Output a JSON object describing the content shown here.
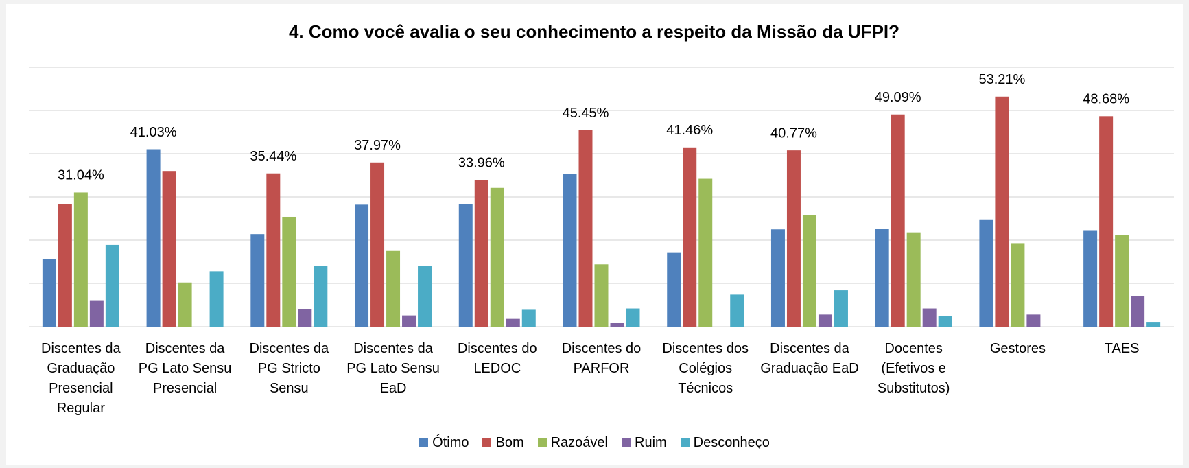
{
  "chart_data": {
    "type": "bar",
    "title": "4. Como você avalia o seu conhecimento a respeito da Missão da UFPI?",
    "categories": [
      "Discentes da Graduação Presencial Regular",
      "Discentes da PG Lato Sensu Presencial",
      "Discentes da PG Stricto Sensu",
      "Discentes da PG Lato Sensu EaD",
      "Discentes do LEDOC",
      "Discentes do PARFOR",
      "Discentes dos Colégios Técnicos",
      "Discentes da Graduação EaD",
      "Docentes (Efetivos e Substitutos)",
      "Gestores",
      "TAES"
    ],
    "series": [
      {
        "name": "Ótimo",
        "color": "#4f81bd",
        "values": [
          15.6,
          41.03,
          21.4,
          28.2,
          28.4,
          35.3,
          17.2,
          22.5,
          22.6,
          24.8,
          22.3
        ],
        "value_labels": [
          null,
          "41.03%",
          null,
          null,
          null,
          null,
          null,
          null,
          null,
          null,
          null
        ]
      },
      {
        "name": "Bom",
        "color": "#c0504d",
        "values": [
          28.4,
          36.0,
          35.44,
          37.97,
          33.96,
          45.45,
          41.46,
          40.77,
          49.09,
          53.21,
          48.68
        ],
        "value_labels": [
          null,
          null,
          "35.44%",
          "37.97%",
          "33.96%",
          "45.45%",
          "41.46%",
          "40.77%",
          "49.09%",
          "53.21%",
          "48.68%"
        ]
      },
      {
        "name": "Razoável",
        "color": "#9bbb59",
        "values": [
          31.04,
          10.2,
          25.4,
          17.5,
          32.1,
          14.4,
          34.2,
          25.8,
          21.8,
          19.3,
          21.2
        ],
        "value_labels": [
          "31.04%",
          null,
          null,
          null,
          null,
          null,
          null,
          null,
          null,
          null,
          null
        ]
      },
      {
        "name": "Ruim",
        "color": "#8064a2",
        "values": [
          6.1,
          0,
          4.0,
          2.6,
          1.8,
          0.9,
          0,
          2.8,
          4.2,
          2.8,
          7.0
        ]
      },
      {
        "name": "Desconheço",
        "color": "#4bacc6",
        "values": [
          18.9,
          12.8,
          14.0,
          14.0,
          3.9,
          4.2,
          7.4,
          8.4,
          2.5,
          0,
          1.1
        ]
      }
    ],
    "ylim": [
      0,
      60
    ],
    "yticks": [
      0,
      10,
      20,
      30,
      40,
      50,
      60
    ],
    "grid": true,
    "legend": "bottom"
  }
}
